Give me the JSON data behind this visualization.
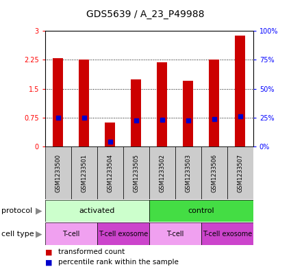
{
  "title": "GDS5639 / A_23_P49988",
  "samples": [
    "GSM1233500",
    "GSM1233501",
    "GSM1233504",
    "GSM1233505",
    "GSM1233502",
    "GSM1233503",
    "GSM1233506",
    "GSM1233507"
  ],
  "transformed_counts": [
    2.3,
    2.25,
    0.62,
    1.75,
    2.19,
    1.7,
    2.25,
    2.88
  ],
  "percentile_ranks": [
    0.75,
    0.75,
    0.12,
    0.68,
    0.69,
    0.67,
    0.72,
    0.78
  ],
  "bar_color": "#cc0000",
  "percentile_color": "#0000cc",
  "left_yticks": [
    0,
    0.75,
    1.5,
    2.25,
    3
  ],
  "left_yticklabels": [
    "0",
    "0.75",
    "1.5",
    "2.25",
    "3"
  ],
  "right_yticks": [
    0,
    0.75,
    1.5,
    2.25,
    3
  ],
  "right_yticklabels": [
    "0%",
    "25%",
    "50%",
    "75%",
    "100%"
  ],
  "ylim": [
    0,
    3
  ],
  "protocol_groups": [
    {
      "label": "activated",
      "start": 0,
      "end": 4,
      "color": "#ccffcc"
    },
    {
      "label": "control",
      "start": 4,
      "end": 8,
      "color": "#44dd44"
    }
  ],
  "cell_type_groups": [
    {
      "label": "T-cell",
      "start": 0,
      "end": 2,
      "color": "#f0a0f0"
    },
    {
      "label": "T-cell exosome",
      "start": 2,
      "end": 4,
      "color": "#cc44cc"
    },
    {
      "label": "T-cell",
      "start": 4,
      "end": 6,
      "color": "#f0a0f0"
    },
    {
      "label": "T-cell exosome",
      "start": 6,
      "end": 8,
      "color": "#cc44cc"
    }
  ],
  "protocol_label": "protocol",
  "cell_type_label": "cell type",
  "legend_items": [
    {
      "label": "transformed count",
      "color": "#cc0000"
    },
    {
      "label": "percentile rank within the sample",
      "color": "#0000cc"
    }
  ],
  "sample_bg_color": "#cccccc",
  "title_fontsize": 10,
  "tick_fontsize": 7,
  "bar_width": 0.4
}
